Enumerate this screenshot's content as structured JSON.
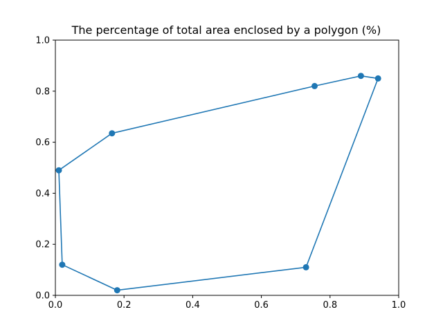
{
  "chart_data": {
    "type": "line",
    "title": "The percentage of total area enclosed by a polygon (%)",
    "xlabel": "",
    "ylabel": "",
    "xlim": [
      0.0,
      1.0
    ],
    "ylim": [
      0.0,
      1.0
    ],
    "grid": false,
    "x_ticks": [
      "0.0",
      "0.2",
      "0.4",
      "0.6",
      "0.8",
      "1.0"
    ],
    "y_ticks": [
      "0.0",
      "0.2",
      "0.4",
      "0.6",
      "0.8",
      "1.0"
    ],
    "series": [
      {
        "color": "#1f77b4",
        "marker": "circle",
        "closed": true,
        "points": [
          {
            "x": 0.18,
            "y": 0.02
          },
          {
            "x": 0.73,
            "y": 0.11
          },
          {
            "x": 0.94,
            "y": 0.85
          },
          {
            "x": 0.89,
            "y": 0.86
          },
          {
            "x": 0.755,
            "y": 0.82
          },
          {
            "x": 0.165,
            "y": 0.635
          },
          {
            "x": 0.01,
            "y": 0.49
          },
          {
            "x": 0.02,
            "y": 0.12
          }
        ]
      }
    ]
  }
}
